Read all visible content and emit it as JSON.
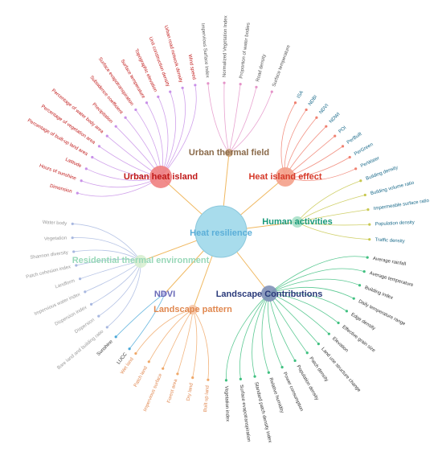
{
  "center": "Heat resilience",
  "groups": [
    {
      "label": "Urban thermal field",
      "leaves": [
        "Impervious Surface Index",
        "Normalized Vegetation Index",
        "Proportion of water bodies",
        "Road density",
        "Surface temperature"
      ]
    },
    {
      "label": "Heat island effect",
      "leaves": [
        "ISA",
        "NDBI",
        "NDVI",
        "NDWI",
        "POI",
        "PerBuilt",
        "PerGreen",
        "PerWater"
      ]
    },
    {
      "label": "Human activities",
      "leaves": [
        "Building density",
        "Building volume ratio",
        "Impermeable surface ratio",
        "Population density",
        "Traffic density"
      ]
    },
    {
      "label": "Landscape Contributions",
      "leaves": [
        "Average rainfall",
        "Average temperature",
        "Building index",
        "Daily temperature range",
        "Edge density",
        "Effective grain size",
        "Elevation",
        "Land use structure change",
        "Patch density",
        "Population density",
        "Power consumption",
        "Relative humidity",
        "Standard patch density index",
        "Surface evapotranspiration",
        "Vegetation index"
      ]
    },
    {
      "label": "Landscape pattern",
      "leaves": [
        "Built up land",
        "Dry land",
        "Forest area",
        "Impervious surface",
        "Patch land",
        "Wet land"
      ]
    },
    {
      "label": "NDVI",
      "leaves": [
        "LUCC",
        "Sunshine"
      ]
    },
    {
      "label": "Residential thermal environment",
      "leaves": [
        "Bare land and building ratio",
        "Dispersion",
        "Dispersion index",
        "Impervious water index",
        "Landform",
        "Patch cohesion index",
        "Shannon diversity",
        "Vegetation",
        "Water body"
      ]
    },
    {
      "label": "Urban heat island",
      "leaves": [
        "Dimension",
        "Hours of sunshine",
        "Latitude",
        "Percentage of built-up land area",
        "Percentage of vegetation area",
        "Percentage of water body area",
        "Precipitation",
        "Subsidence coefficient",
        "Surface evapotranspiration",
        "Surface temperature",
        "Topographic elevation",
        "Unit construction density",
        "Urban road network density",
        "Wind speed"
      ]
    }
  ]
}
